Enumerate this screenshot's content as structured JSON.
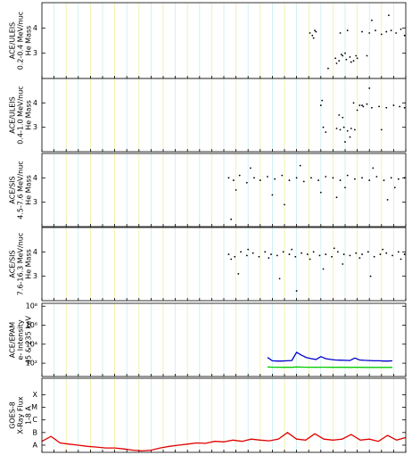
{
  "chart_data": [
    {
      "type": "scatter",
      "ylabel": [
        "ACE/ULEIS",
        "0.2-0.4 MeV/nuc",
        "He Mass"
      ],
      "color": "#000000",
      "xlim": [
        0,
        30
      ],
      "xticks": [
        0,
        1,
        2,
        3,
        4,
        5,
        6,
        7,
        8,
        9,
        10,
        11,
        12,
        13,
        14,
        15,
        16,
        17,
        18,
        19,
        20,
        21,
        22,
        23,
        24,
        25,
        26,
        27,
        28,
        29,
        30
      ],
      "ylim": [
        2,
        5
      ],
      "yticks": [
        3,
        4
      ],
      "log": false,
      "x": [
        22.1,
        22.3,
        22.5,
        22.4,
        22.6,
        24.2,
        24.5,
        24.8,
        25.1,
        25.4,
        25.7,
        26.0,
        24.3,
        24.7,
        25.0,
        25.5,
        25.9,
        24.6,
        25.2,
        26.4,
        27.0,
        27.5,
        28.0,
        28.4,
        28.8,
        29.2,
        29.6,
        29.9,
        27.2,
        28.6,
        23.6,
        26.8
      ],
      "values": [
        3.8,
        3.7,
        3.9,
        3.6,
        3.85,
        2.8,
        2.7,
        2.9,
        2.75,
        2.85,
        2.7,
        2.8,
        2.6,
        2.95,
        3.0,
        2.65,
        2.9,
        3.8,
        3.9,
        3.85,
        3.8,
        3.9,
        3.75,
        3.85,
        3.9,
        3.8,
        3.95,
        3.7,
        4.3,
        4.5,
        2.4,
        2.9
      ]
    },
    {
      "type": "scatter",
      "ylabel": [
        "ACE/ULEIS",
        "0.4-1.0 MeV/nuc",
        "He Mass"
      ],
      "color": "#000000",
      "xlim": [
        0,
        30
      ],
      "xticks": [
        0,
        1,
        2,
        3,
        4,
        5,
        6,
        7,
        8,
        9,
        10,
        11,
        12,
        13,
        14,
        15,
        16,
        17,
        18,
        19,
        20,
        21,
        22,
        23,
        24,
        25,
        26,
        27,
        28,
        29,
        30
      ],
      "ylim": [
        2,
        5
      ],
      "yticks": [
        3,
        4
      ],
      "log": false,
      "x": [
        23.0,
        23.2,
        23.4,
        24.3,
        24.6,
        24.9,
        25.2,
        25.5,
        25.8,
        24.5,
        25.0,
        25.4,
        26.2,
        26.5,
        26.8,
        27.2,
        27.8,
        28.4,
        29.0,
        29.5,
        29.9,
        26.0,
        24.8,
        23.1,
        27.0,
        28.0,
        25.7,
        26.4
      ],
      "values": [
        3.9,
        3.0,
        2.8,
        2.95,
        2.9,
        3.0,
        2.85,
        2.95,
        2.9,
        3.5,
        2.4,
        2.6,
        3.9,
        3.85,
        3.95,
        3.8,
        3.85,
        3.8,
        3.9,
        3.85,
        3.8,
        3.7,
        3.4,
        4.1,
        4.6,
        2.9,
        4.0,
        3.9
      ]
    },
    {
      "type": "scatter",
      "ylabel": [
        "ACE/SIS",
        "4.5-7.6 MeV/nuc",
        "He Mass"
      ],
      "color": "#000000",
      "xlim": [
        0,
        30
      ],
      "xticks": [
        0,
        1,
        2,
        3,
        4,
        5,
        6,
        7,
        8,
        9,
        10,
        11,
        12,
        13,
        14,
        15,
        16,
        17,
        18,
        19,
        20,
        21,
        22,
        23,
        24,
        25,
        26,
        27,
        28,
        29,
        30
      ],
      "ylim": [
        2,
        5
      ],
      "yticks": [
        3,
        4
      ],
      "log": false,
      "x": [
        15.4,
        15.8,
        16.3,
        16.9,
        17.5,
        18.0,
        18.6,
        19.2,
        19.8,
        20.4,
        21.0,
        21.6,
        22.2,
        22.8,
        23.4,
        24.0,
        24.6,
        25.2,
        25.8,
        26.4,
        27.0,
        27.6,
        28.2,
        28.8,
        29.4,
        29.9,
        16.0,
        17.2,
        19.0,
        21.3,
        23.0,
        25.0,
        27.3,
        29.1,
        15.6,
        20.0,
        24.3,
        28.5
      ],
      "values": [
        4.0,
        3.9,
        4.1,
        3.8,
        4.0,
        3.9,
        4.05,
        3.95,
        4.1,
        3.9,
        4.0,
        3.85,
        4.0,
        3.9,
        4.05,
        4.0,
        3.9,
        4.1,
        3.95,
        4.0,
        3.9,
        4.05,
        3.9,
        4.0,
        3.95,
        4.0,
        3.5,
        4.4,
        3.3,
        4.5,
        3.4,
        3.6,
        4.4,
        3.6,
        2.3,
        2.9,
        3.2,
        3.1
      ]
    },
    {
      "type": "scatter",
      "ylabel": [
        "ACE/SIS",
        "7.6-16.3 MeV/nuc",
        "He Mass"
      ],
      "color": "#000000",
      "xlim": [
        0,
        30
      ],
      "xticks": [
        0,
        1,
        2,
        3,
        4,
        5,
        6,
        7,
        8,
        9,
        10,
        11,
        12,
        13,
        14,
        15,
        16,
        17,
        18,
        19,
        20,
        21,
        22,
        23,
        24,
        25,
        26,
        27,
        28,
        29,
        30
      ],
      "ylim": [
        2,
        5
      ],
      "yticks": [
        3,
        4
      ],
      "log": false,
      "x": [
        15.4,
        15.9,
        16.4,
        16.9,
        17.4,
        17.9,
        18.4,
        18.9,
        19.4,
        19.9,
        20.4,
        20.9,
        21.4,
        21.9,
        22.4,
        22.9,
        23.4,
        23.9,
        24.4,
        24.9,
        25.4,
        25.9,
        26.4,
        26.9,
        27.4,
        27.9,
        28.4,
        28.9,
        29.4,
        29.9,
        15.6,
        17.0,
        18.7,
        20.6,
        22.1,
        24.1,
        26.2,
        28.1,
        29.6,
        16.2,
        19.6,
        23.2,
        27.1,
        21.0,
        24.8
      ],
      "values": [
        3.9,
        3.8,
        4.0,
        3.85,
        3.95,
        3.8,
        4.0,
        3.9,
        3.85,
        4.0,
        3.9,
        3.8,
        3.95,
        3.9,
        4.0,
        3.85,
        3.9,
        3.8,
        4.0,
        3.9,
        3.85,
        3.95,
        3.9,
        4.0,
        3.8,
        3.9,
        3.95,
        3.85,
        4.0,
        3.9,
        3.7,
        4.1,
        3.75,
        4.1,
        3.7,
        4.15,
        3.75,
        4.1,
        3.7,
        3.1,
        2.9,
        3.3,
        3.0,
        2.4,
        3.5
      ]
    },
    {
      "type": "line",
      "ylabel": [
        "ACE/EPAM",
        "e- Intensity",
        "45 & 235 keV"
      ],
      "xlim": [
        0,
        30
      ],
      "xticks": [
        0,
        1,
        2,
        3,
        4,
        5,
        6,
        7,
        8,
        9,
        10,
        11,
        12,
        13,
        14,
        15,
        16,
        17,
        18,
        19,
        20,
        21,
        22,
        23,
        24,
        25,
        26,
        27,
        28,
        29,
        30
      ],
      "ylim": [
        4,
        200000000
      ],
      "log": true,
      "yticks": [
        {
          "value": 100,
          "label": "10²"
        },
        {
          "value": 10000,
          "label": "10⁴"
        },
        {
          "value": 1000000,
          "label": "10⁶"
        },
        {
          "value": 100000000,
          "label": "10⁸"
        }
      ],
      "x": [
        18.6,
        19.0,
        19.4,
        19.8,
        20.2,
        20.6,
        21.0,
        21.4,
        21.8,
        22.2,
        22.6,
        23.0,
        23.4,
        23.8,
        24.2,
        24.6,
        25.0,
        25.4,
        25.8,
        26.2,
        26.6,
        27.0,
        27.4,
        27.8,
        28.2,
        28.6,
        28.9
      ],
      "series": [
        {
          "color": "#0000cc",
          "values": [
            400,
            180,
            170,
            170,
            180,
            190,
            1400,
            700,
            400,
            300,
            250,
            500,
            300,
            250,
            220,
            210,
            200,
            190,
            350,
            220,
            200,
            190,
            180,
            180,
            170,
            170,
            180
          ]
        },
        {
          "color": "#00cc00",
          "values": [
            40,
            38,
            38,
            37,
            37,
            37,
            40,
            39,
            38,
            38,
            37,
            38,
            38,
            37,
            37,
            37,
            37,
            36,
            37,
            37,
            36,
            36,
            36,
            36,
            36,
            36,
            36
          ]
        }
      ]
    },
    {
      "type": "line",
      "ylabel": [
        "GOES-8",
        "X-Ray Flux",
        "1-8 A"
      ],
      "color": "#e00000",
      "xlim": [
        0,
        30
      ],
      "xticks": [
        0,
        1,
        2,
        3,
        4,
        5,
        6,
        7,
        8,
        9,
        10,
        11,
        12,
        13,
        14,
        15,
        16,
        17,
        18,
        19,
        20,
        21,
        22,
        23,
        24,
        25,
        26,
        27,
        28,
        29,
        30
      ],
      "ylim": [
        2.7e-09,
        0.002
      ],
      "log": true,
      "yticks": [
        {
          "value": 1e-08,
          "label": "A"
        },
        {
          "value": 1e-07,
          "label": "B"
        },
        {
          "value": 1e-06,
          "label": "C"
        },
        {
          "value": 1e-05,
          "label": "M"
        },
        {
          "value": 0.0001,
          "label": "X"
        }
      ],
      "x": [
        0,
        0.75,
        1.5,
        2.25,
        3,
        3.75,
        4.5,
        5.25,
        6,
        6.75,
        7.5,
        8.25,
        9,
        9.75,
        10.5,
        11.25,
        12,
        12.75,
        13.5,
        14.25,
        15,
        15.75,
        16.5,
        17.25,
        18,
        18.75,
        19.5,
        20.25,
        21,
        21.75,
        22.5,
        23.25,
        24,
        24.75,
        25.5,
        26.25,
        27,
        27.75,
        28.5,
        29.25,
        30
      ],
      "values": [
        2e-08,
        5e-08,
        1.5e-08,
        1.2e-08,
        1e-08,
        8e-09,
        7e-09,
        6e-09,
        6e-09,
        5e-09,
        4e-09,
        3.5e-09,
        4e-09,
        6e-09,
        8e-09,
        1e-08,
        1.2e-08,
        1.5e-08,
        1.4e-08,
        2e-08,
        1.8e-08,
        2.5e-08,
        2e-08,
        3e-08,
        2.5e-08,
        2.2e-08,
        3e-08,
        1e-07,
        3e-08,
        2.5e-08,
        8e-08,
        3e-08,
        2.5e-08,
        3e-08,
        7e-08,
        2.5e-08,
        3e-08,
        2e-08,
        6e-08,
        2.5e-08,
        4e-08
      ]
    }
  ]
}
